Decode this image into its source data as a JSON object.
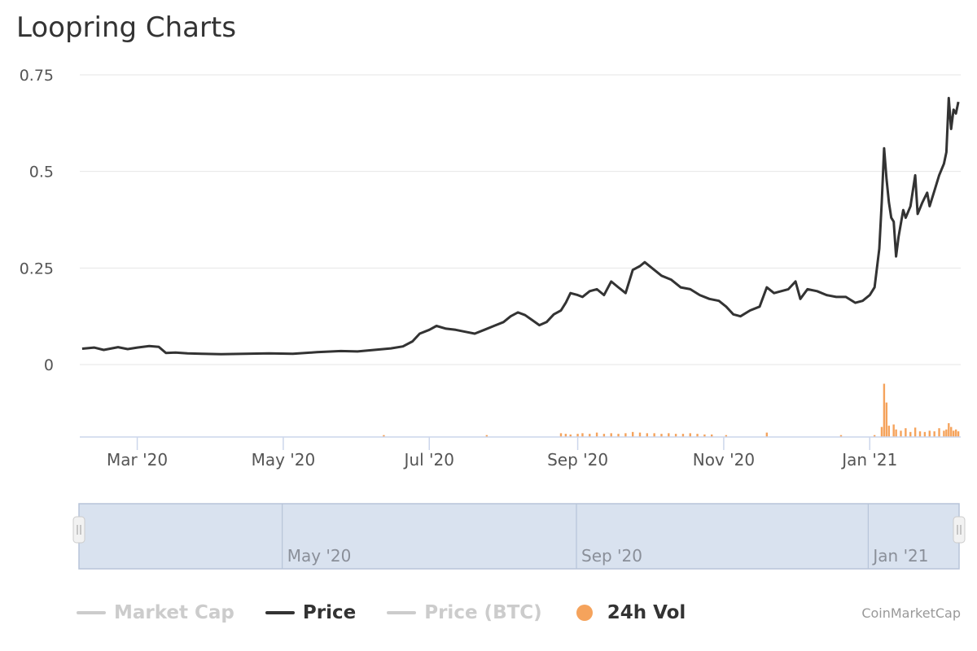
{
  "title": "Loopring Charts",
  "credit": "CoinMarketCap",
  "colors": {
    "price": "#333333",
    "volume": "#f5a35c",
    "grid": "#e6e6e6",
    "navigator_fill": "#d9e2ef",
    "navigator_border": "#b7c4d8",
    "legend_inactive": "#cccccc"
  },
  "legend": [
    {
      "label": "Market Cap",
      "active": false,
      "symbol": "line",
      "color": "#cccccc"
    },
    {
      "label": "Price",
      "active": true,
      "symbol": "line",
      "color": "#333333"
    },
    {
      "label": "Price (BTC)",
      "active": false,
      "symbol": "line",
      "color": "#cccccc"
    },
    {
      "label": "24h Vol",
      "active": true,
      "symbol": "dot",
      "color": "#f5a35c"
    }
  ],
  "navigator": {
    "ticks": [
      "May '20",
      "Sep '20",
      "Jan '21"
    ]
  },
  "chart_data": {
    "type": "line",
    "title": "Loopring Charts",
    "x_axis": {
      "type": "date",
      "ticks": [
        "Mar '20",
        "May '20",
        "Jul '20",
        "Sep '20",
        "Nov '20",
        "Jan '21"
      ]
    },
    "y_axis": {
      "ticks": [
        "0",
        "0.25",
        "0.5",
        "0.75"
      ],
      "ylim": [
        0,
        0.75
      ],
      "grid": true
    },
    "series": [
      {
        "name": "Price",
        "color": "#333333",
        "points": [
          [
            "2020-02-07",
            0.041
          ],
          [
            "2020-02-12",
            0.044
          ],
          [
            "2020-02-16",
            0.038
          ],
          [
            "2020-02-22",
            0.045
          ],
          [
            "2020-02-26",
            0.04
          ],
          [
            "2020-03-01",
            0.044
          ],
          [
            "2020-03-06",
            0.048
          ],
          [
            "2020-03-10",
            0.046
          ],
          [
            "2020-03-13",
            0.03
          ],
          [
            "2020-03-17",
            0.031
          ],
          [
            "2020-03-22",
            0.029
          ],
          [
            "2020-03-28",
            0.028
          ],
          [
            "2020-04-05",
            0.027
          ],
          [
            "2020-04-15",
            0.028
          ],
          [
            "2020-04-25",
            0.029
          ],
          [
            "2020-05-05",
            0.028
          ],
          [
            "2020-05-15",
            0.032
          ],
          [
            "2020-05-25",
            0.035
          ],
          [
            "2020-06-01",
            0.034
          ],
          [
            "2020-06-08",
            0.038
          ],
          [
            "2020-06-15",
            0.042
          ],
          [
            "2020-06-20",
            0.047
          ],
          [
            "2020-06-24",
            0.06
          ],
          [
            "2020-06-27",
            0.08
          ],
          [
            "2020-07-01",
            0.09
          ],
          [
            "2020-07-04",
            0.1
          ],
          [
            "2020-07-08",
            0.093
          ],
          [
            "2020-07-12",
            0.09
          ],
          [
            "2020-07-16",
            0.085
          ],
          [
            "2020-07-20",
            0.08
          ],
          [
            "2020-07-24",
            0.09
          ],
          [
            "2020-07-28",
            0.1
          ],
          [
            "2020-08-01",
            0.11
          ],
          [
            "2020-08-04",
            0.125
          ],
          [
            "2020-08-07",
            0.135
          ],
          [
            "2020-08-10",
            0.128
          ],
          [
            "2020-08-13",
            0.115
          ],
          [
            "2020-08-16",
            0.102
          ],
          [
            "2020-08-19",
            0.11
          ],
          [
            "2020-08-22",
            0.13
          ],
          [
            "2020-08-25",
            0.14
          ],
          [
            "2020-08-27",
            0.16
          ],
          [
            "2020-08-29",
            0.185
          ],
          [
            "2020-09-01",
            0.18
          ],
          [
            "2020-09-03",
            0.175
          ],
          [
            "2020-09-06",
            0.19
          ],
          [
            "2020-09-09",
            0.195
          ],
          [
            "2020-09-12",
            0.18
          ],
          [
            "2020-09-15",
            0.215
          ],
          [
            "2020-09-18",
            0.2
          ],
          [
            "2020-09-21",
            0.185
          ],
          [
            "2020-09-24",
            0.245
          ],
          [
            "2020-09-27",
            0.255
          ],
          [
            "2020-09-29",
            0.265
          ],
          [
            "2020-10-02",
            0.25
          ],
          [
            "2020-10-06",
            0.23
          ],
          [
            "2020-10-10",
            0.22
          ],
          [
            "2020-10-14",
            0.2
          ],
          [
            "2020-10-18",
            0.195
          ],
          [
            "2020-10-22",
            0.18
          ],
          [
            "2020-10-26",
            0.17
          ],
          [
            "2020-10-30",
            0.165
          ],
          [
            "2020-11-02",
            0.15
          ],
          [
            "2020-11-05",
            0.13
          ],
          [
            "2020-11-08",
            0.125
          ],
          [
            "2020-11-12",
            0.14
          ],
          [
            "2020-11-16",
            0.15
          ],
          [
            "2020-11-19",
            0.2
          ],
          [
            "2020-11-22",
            0.185
          ],
          [
            "2020-11-25",
            0.19
          ],
          [
            "2020-11-28",
            0.195
          ],
          [
            "2020-12-01",
            0.215
          ],
          [
            "2020-12-03",
            0.17
          ],
          [
            "2020-12-06",
            0.195
          ],
          [
            "2020-12-10",
            0.19
          ],
          [
            "2020-12-14",
            0.18
          ],
          [
            "2020-12-18",
            0.175
          ],
          [
            "2020-12-22",
            0.175
          ],
          [
            "2020-12-26",
            0.16
          ],
          [
            "2020-12-29",
            0.165
          ],
          [
            "2021-01-01",
            0.18
          ],
          [
            "2021-01-03",
            0.2
          ],
          [
            "2021-01-05",
            0.3
          ],
          [
            "2021-01-06",
            0.42
          ],
          [
            "2021-01-07",
            0.56
          ],
          [
            "2021-01-08",
            0.48
          ],
          [
            "2021-01-09",
            0.42
          ],
          [
            "2021-01-10",
            0.38
          ],
          [
            "2021-01-11",
            0.37
          ],
          [
            "2021-01-12",
            0.28
          ],
          [
            "2021-01-13",
            0.33
          ],
          [
            "2021-01-15",
            0.4
          ],
          [
            "2021-01-16",
            0.38
          ],
          [
            "2021-01-18",
            0.41
          ],
          [
            "2021-01-20",
            0.49
          ],
          [
            "2021-01-21",
            0.39
          ],
          [
            "2021-01-23",
            0.42
          ],
          [
            "2021-01-25",
            0.445
          ],
          [
            "2021-01-26",
            0.41
          ],
          [
            "2021-01-28",
            0.45
          ],
          [
            "2021-01-30",
            0.49
          ],
          [
            "2021-02-01",
            0.52
          ],
          [
            "2021-02-02",
            0.55
          ],
          [
            "2021-02-03",
            0.69
          ],
          [
            "2021-02-04",
            0.61
          ],
          [
            "2021-02-05",
            0.66
          ],
          [
            "2021-02-06",
            0.65
          ],
          [
            "2021-02-07",
            0.68
          ]
        ]
      },
      {
        "name": "24h Vol",
        "color": "#f5a35c",
        "type": "bar",
        "points": [
          [
            "2020-06-12",
            0.03
          ],
          [
            "2020-07-25",
            0.03
          ],
          [
            "2020-08-25",
            0.06
          ],
          [
            "2020-08-27",
            0.05
          ],
          [
            "2020-08-29",
            0.04
          ],
          [
            "2020-09-01",
            0.05
          ],
          [
            "2020-09-03",
            0.06
          ],
          [
            "2020-09-06",
            0.05
          ],
          [
            "2020-09-09",
            0.07
          ],
          [
            "2020-09-12",
            0.05
          ],
          [
            "2020-09-15",
            0.06
          ],
          [
            "2020-09-18",
            0.05
          ],
          [
            "2020-09-21",
            0.06
          ],
          [
            "2020-09-24",
            0.08
          ],
          [
            "2020-09-27",
            0.07
          ],
          [
            "2020-09-30",
            0.06
          ],
          [
            "2020-10-03",
            0.06
          ],
          [
            "2020-10-06",
            0.05
          ],
          [
            "2020-10-09",
            0.06
          ],
          [
            "2020-10-12",
            0.05
          ],
          [
            "2020-10-15",
            0.05
          ],
          [
            "2020-10-18",
            0.06
          ],
          [
            "2020-10-21",
            0.05
          ],
          [
            "2020-10-24",
            0.04
          ],
          [
            "2020-10-27",
            0.04
          ],
          [
            "2020-11-02",
            0.03
          ],
          [
            "2020-11-19",
            0.07
          ],
          [
            "2020-12-20",
            0.03
          ],
          [
            "2021-01-03",
            0.03
          ],
          [
            "2021-01-06",
            0.16
          ],
          [
            "2021-01-07",
            0.85
          ],
          [
            "2021-01-08",
            0.55
          ],
          [
            "2021-01-09",
            0.18
          ],
          [
            "2021-01-11",
            0.2
          ],
          [
            "2021-01-12",
            0.12
          ],
          [
            "2021-01-14",
            0.1
          ],
          [
            "2021-01-16",
            0.14
          ],
          [
            "2021-01-18",
            0.08
          ],
          [
            "2021-01-20",
            0.15
          ],
          [
            "2021-01-22",
            0.09
          ],
          [
            "2021-01-24",
            0.08
          ],
          [
            "2021-01-26",
            0.1
          ],
          [
            "2021-01-28",
            0.09
          ],
          [
            "2021-01-30",
            0.14
          ],
          [
            "2021-02-01",
            0.1
          ],
          [
            "2021-02-02",
            0.12
          ],
          [
            "2021-02-03",
            0.22
          ],
          [
            "2021-02-04",
            0.16
          ],
          [
            "2021-02-05",
            0.1
          ],
          [
            "2021-02-06",
            0.12
          ],
          [
            "2021-02-07",
            0.09
          ]
        ]
      }
    ],
    "legend_position": "bottom-left"
  }
}
